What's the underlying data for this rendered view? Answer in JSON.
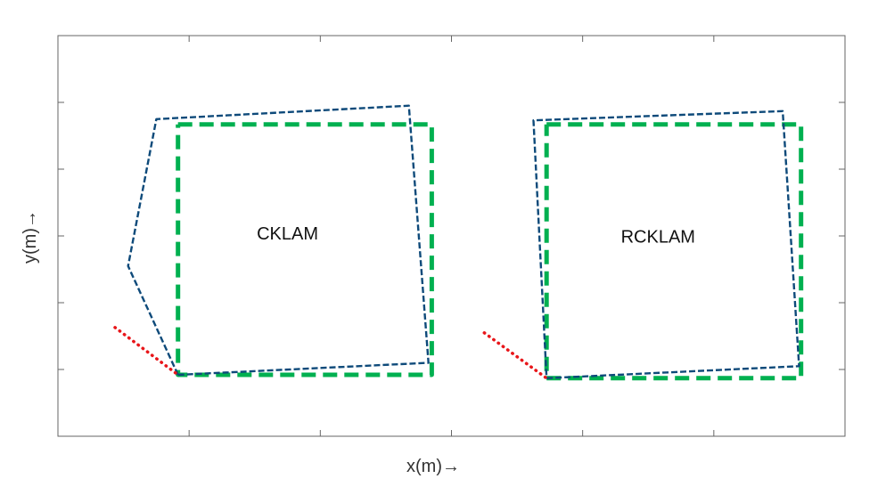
{
  "chart_data": {
    "type": "line",
    "title": "",
    "xlabel": "x(m)→",
    "ylabel": "y(m)→",
    "xlim": [
      0,
      12
    ],
    "ylim": [
      0,
      6
    ],
    "xticks": [
      2,
      4,
      6,
      8,
      10
    ],
    "yticks": [
      1,
      2,
      3,
      4,
      5
    ],
    "tick_labels_visible": false,
    "grid": false,
    "legend": "none",
    "annotations": [
      {
        "text": "CKLAM",
        "x": 3.5,
        "y": 2.95
      },
      {
        "text": "RCKLAM",
        "x": 9.15,
        "y": 2.9
      }
    ],
    "series": [
      {
        "role": "reference",
        "color": "#00b050",
        "style": "dashed-thick",
        "x": [
          1.83,
          5.7,
          5.7,
          1.83,
          1.83
        ],
        "y": [
          4.67,
          4.67,
          0.92,
          0.92,
          4.67
        ]
      },
      {
        "role": "estimate",
        "color": "#0e4a7a",
        "style": "dashed-thin",
        "x": [
          1.83,
          5.65,
          5.35,
          1.5,
          1.07,
          1.83
        ],
        "y": [
          0.92,
          1.1,
          4.95,
          4.75,
          2.55,
          0.92
        ]
      },
      {
        "role": "approach",
        "color": "#e8161a",
        "style": "dotted",
        "x": [
          0.87,
          1.83
        ],
        "y": [
          1.63,
          0.92
        ]
      },
      {
        "role": "reference",
        "color": "#00b050",
        "style": "dashed-thick",
        "x": [
          7.45,
          11.33,
          11.33,
          7.45,
          7.45
        ],
        "y": [
          4.67,
          4.67,
          0.87,
          0.87,
          4.67
        ]
      },
      {
        "role": "estimate",
        "color": "#0e4a7a",
        "style": "dashed-thin",
        "x": [
          7.45,
          11.3,
          11.05,
          7.25,
          7.45
        ],
        "y": [
          0.87,
          1.05,
          4.87,
          4.73,
          0.87
        ]
      },
      {
        "role": "approach",
        "color": "#e8161a",
        "style": "dotted",
        "x": [
          6.5,
          7.45
        ],
        "y": [
          1.55,
          0.87
        ]
      }
    ]
  }
}
